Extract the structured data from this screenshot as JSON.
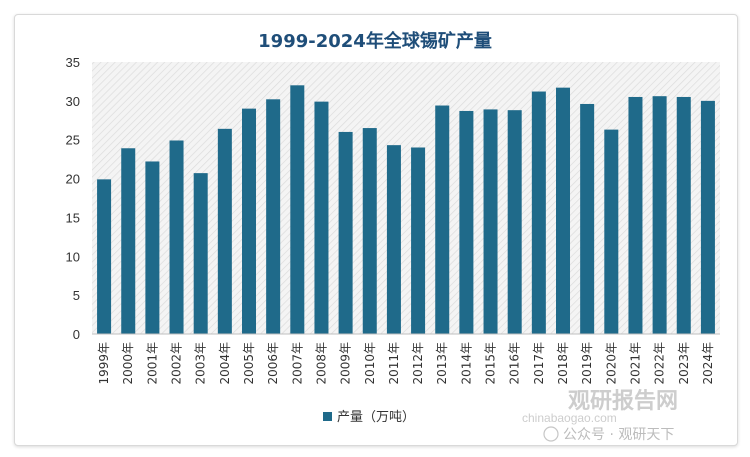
{
  "chart_data": {
    "type": "bar",
    "title": "1999-2024年全球锡矿产量",
    "categories": [
      "1999年",
      "2000年",
      "2001年",
      "2002年",
      "2003年",
      "2004年",
      "2005年",
      "2006年",
      "2007年",
      "2008年",
      "2009年",
      "2010年",
      "2011年",
      "2012年",
      "2013年",
      "2014年",
      "2015年",
      "2016年",
      "2017年",
      "2018年",
      "2019年",
      "2020年",
      "2021年",
      "2022年",
      "2023年",
      "2024年"
    ],
    "series": [
      {
        "name": "产量（万吨）",
        "values": [
          19.9,
          23.9,
          22.2,
          24.9,
          20.7,
          26.4,
          29.0,
          30.2,
          32.0,
          29.9,
          26.0,
          26.5,
          24.3,
          24.0,
          29.4,
          28.7,
          28.9,
          28.8,
          31.2,
          31.7,
          29.6,
          26.3,
          30.5,
          30.6,
          30.5,
          30.0
        ]
      }
    ],
    "ylim": [
      0,
      35
    ],
    "yticks": [
      0,
      5,
      10,
      15,
      20,
      25,
      30,
      35
    ],
    "xlabel": "",
    "ylabel": "",
    "legend_position": "bottom",
    "bar_color": "#1f6a8a",
    "plot_background": "diagonal hatch"
  },
  "watermark": {
    "brand": "观研报告网",
    "url": "chinabaogao.com",
    "account": "公众号 · 观研天下"
  }
}
